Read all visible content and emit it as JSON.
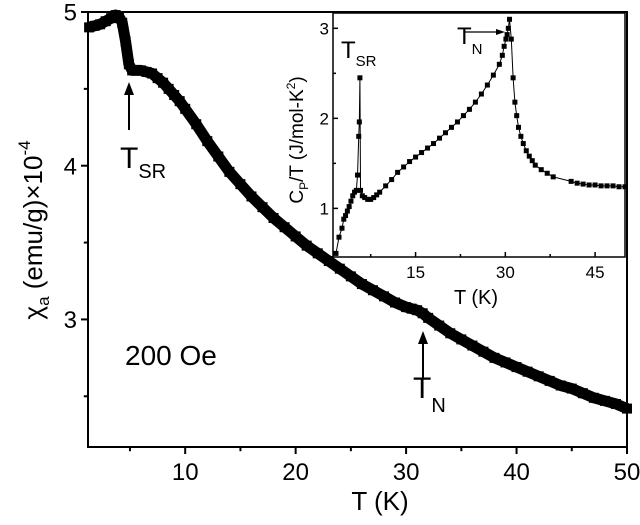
{
  "chart_data": [
    {
      "type": "scatter",
      "xlabel": "T (K)",
      "ylabel_main": "χ",
      "ylabel_sub": "a",
      "ylabel_rest": " (emu/g)×10",
      "ylabel_exp": "-4",
      "xlim": [
        1.2,
        50
      ],
      "ylim": [
        2.17,
        5
      ],
      "xticks": [
        10,
        20,
        30,
        40,
        50
      ],
      "xminor": [
        5,
        15,
        25,
        35,
        45
      ],
      "yticks": [
        3,
        4,
        5
      ],
      "yminor": [
        2.5,
        3.5,
        4.5
      ],
      "grid": false,
      "marker_color": "#000000",
      "annotations": {
        "field": "200 Oe",
        "tsr": {
          "main": "T",
          "sub": "SR",
          "x": 5
        },
        "tn": {
          "main": "T",
          "sub": "N",
          "x": 31.5
        }
      },
      "x": [
        1.3,
        1.8,
        2.3,
        2.8,
        3.3,
        3.7,
        4.0,
        4.3,
        4.6,
        4.9,
        5.2,
        5.6,
        6.0,
        6.5,
        7.0,
        7.5,
        8.0,
        8.5,
        9.0,
        9.5,
        10,
        11,
        12,
        13,
        14,
        15,
        16,
        17,
        18,
        19,
        20,
        21,
        22,
        23,
        24,
        25,
        26,
        27,
        28,
        29,
        30,
        30.5,
        31,
        31.5,
        32,
        33,
        34,
        35,
        36,
        37,
        38,
        39,
        40,
        41,
        42,
        43,
        44,
        45,
        46,
        47,
        48,
        49,
        50
      ],
      "y": [
        4.9,
        4.91,
        4.92,
        4.94,
        4.96,
        4.98,
        4.97,
        4.93,
        4.81,
        4.66,
        4.62,
        4.62,
        4.62,
        4.61,
        4.6,
        4.57,
        4.54,
        4.5,
        4.46,
        4.42,
        4.37,
        4.27,
        4.16,
        4.06,
        3.96,
        3.88,
        3.8,
        3.73,
        3.66,
        3.6,
        3.54,
        3.48,
        3.43,
        3.38,
        3.33,
        3.28,
        3.23,
        3.19,
        3.15,
        3.11,
        3.08,
        3.07,
        3.06,
        3.04,
        3.01,
        2.96,
        2.91,
        2.87,
        2.83,
        2.79,
        2.75,
        2.72,
        2.69,
        2.66,
        2.63,
        2.6,
        2.57,
        2.55,
        2.52,
        2.49,
        2.47,
        2.45,
        2.42
      ]
    },
    {
      "type": "line",
      "xlabel": "T (K)",
      "ylabel_main": "C",
      "ylabel_sub": "P",
      "ylabel_rest": "/T (J/mol-K",
      "ylabel_exp": "2",
      "ylabel_close": ")",
      "xlim": [
        1.2,
        50
      ],
      "ylim": [
        0.46,
        3.17
      ],
      "xticks": [
        15,
        30,
        45
      ],
      "xminor": [
        7.5,
        22.5,
        37.5
      ],
      "yticks": [
        1,
        2,
        3
      ],
      "yminor": [
        1.5,
        2.5
      ],
      "grid": false,
      "annotations": {
        "tsr": {
          "main": "T",
          "sub": "SR"
        },
        "tn": {
          "main": "T",
          "sub": "N"
        }
      },
      "x": [
        1.7,
        2.2,
        2.7,
        3.0,
        3.3,
        3.6,
        3.9,
        4.2,
        4.5,
        4.8,
        5.1,
        5.3,
        5.5,
        5.6,
        5.7,
        5.8,
        6.1,
        6.5,
        7.0,
        7.5,
        8.0,
        8.5,
        9.0,
        10,
        11,
        12,
        13,
        14,
        15,
        16,
        17,
        18,
        19,
        20,
        21,
        22,
        23,
        24,
        25,
        26,
        27,
        28,
        29,
        29.5,
        29.8,
        30.1,
        30.3,
        30.5,
        30.7,
        31.0,
        31.3,
        31.6,
        31.9,
        32.2,
        32.6,
        33,
        33.5,
        34,
        34.5,
        35,
        36,
        37,
        38,
        41,
        42,
        43,
        44,
        45,
        46,
        47,
        48,
        49,
        50
      ],
      "y": [
        0.5,
        0.68,
        0.78,
        0.88,
        0.92,
        0.97,
        1.02,
        1.08,
        1.14,
        1.18,
        1.2,
        1.37,
        1.8,
        1.96,
        2.45,
        1.2,
        1.14,
        1.12,
        1.1,
        1.1,
        1.12,
        1.15,
        1.18,
        1.25,
        1.32,
        1.4,
        1.46,
        1.52,
        1.57,
        1.62,
        1.67,
        1.72,
        1.78,
        1.84,
        1.9,
        1.96,
        2.03,
        2.1,
        2.18,
        2.27,
        2.37,
        2.48,
        2.6,
        2.7,
        2.8,
        2.88,
        2.93,
        3.0,
        3.1,
        2.88,
        2.45,
        2.18,
        2.03,
        1.9,
        1.8,
        1.72,
        1.64,
        1.58,
        1.53,
        1.48,
        1.43,
        1.39,
        1.35,
        1.3,
        1.28,
        1.27,
        1.26,
        1.26,
        1.25,
        1.25,
        1.25,
        1.24,
        1.24
      ]
    }
  ]
}
